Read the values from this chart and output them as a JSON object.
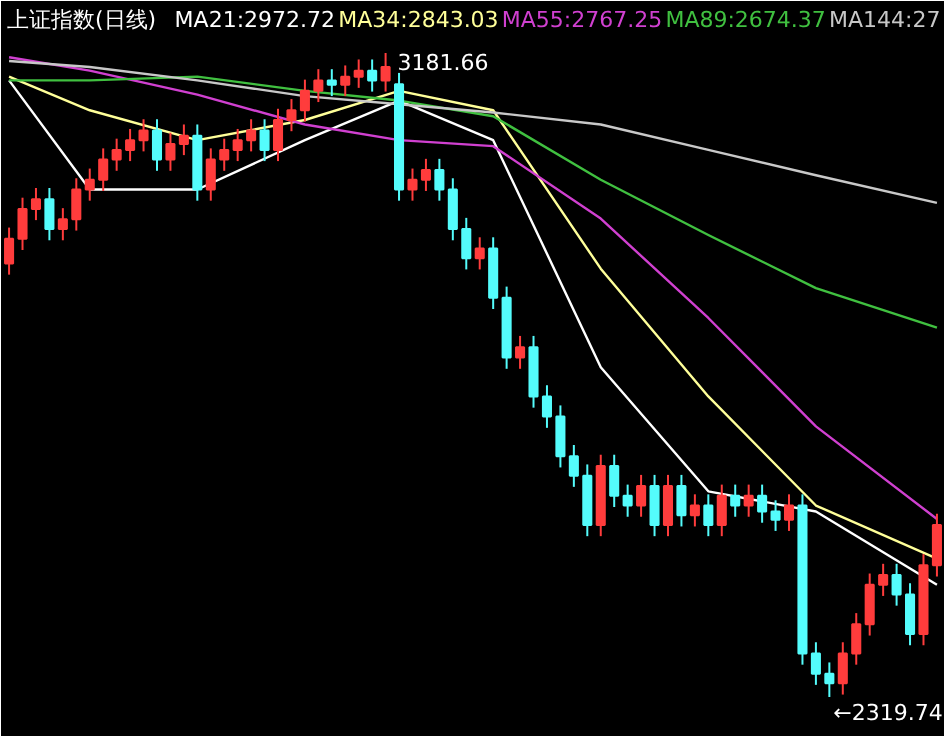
{
  "chart_data": {
    "type": "candlestick",
    "title": "上证指数(日线)",
    "categories": [
      null,
      null,
      null,
      null,
      null,
      null,
      null,
      null,
      null,
      null,
      null,
      null,
      null,
      null,
      null,
      null,
      null,
      null,
      null,
      null,
      null,
      null,
      null,
      null,
      null,
      null,
      null,
      null,
      null,
      null,
      null,
      null,
      null,
      null,
      null,
      null,
      null,
      null,
      null,
      null,
      null,
      null,
      null,
      null,
      null,
      null,
      null,
      null,
      null,
      null,
      null,
      null,
      null,
      null,
      null,
      null,
      null,
      null,
      null,
      null,
      null,
      null,
      null,
      null,
      null,
      null,
      null,
      null,
      null,
      null
    ],
    "ohlc": [
      [
        2900,
        2948,
        2885,
        2933
      ],
      [
        2933,
        2988,
        2918,
        2973
      ],
      [
        2973,
        3001,
        2958,
        2986
      ],
      [
        2986,
        3001,
        2931,
        2946
      ],
      [
        2946,
        2974,
        2931,
        2959
      ],
      [
        2959,
        3014,
        2944,
        2999
      ],
      [
        2999,
        3027,
        2984,
        3012
      ],
      [
        3012,
        3054,
        2997,
        3039
      ],
      [
        3039,
        3067,
        3024,
        3052
      ],
      [
        3052,
        3080,
        3037,
        3065
      ],
      [
        3065,
        3093,
        3050,
        3078
      ],
      [
        3078,
        3093,
        3024,
        3039
      ],
      [
        3039,
        3075,
        3024,
        3060
      ],
      [
        3060,
        3086,
        3045,
        3071
      ],
      [
        3071,
        3086,
        2984,
        2999
      ],
      [
        2999,
        3054,
        2984,
        3039
      ],
      [
        3039,
        3067,
        3024,
        3052
      ],
      [
        3052,
        3080,
        3037,
        3065
      ],
      [
        3065,
        3093,
        3050,
        3078
      ],
      [
        3078,
        3093,
        3037,
        3052
      ],
      [
        3052,
        3107,
        3037,
        3092
      ],
      [
        3092,
        3120,
        3077,
        3105
      ],
      [
        3105,
        3146,
        3090,
        3131
      ],
      [
        3131,
        3160,
        3116,
        3145
      ],
      [
        3145,
        3160,
        3124,
        3139
      ],
      [
        3139,
        3165,
        3124,
        3150
      ],
      [
        3150,
        3173,
        3135,
        3158
      ],
      [
        3158,
        3173,
        3130,
        3145
      ],
      [
        3145,
        3181.66,
        3130,
        3163
      ],
      [
        3140,
        3155,
        2984,
        2999
      ],
      [
        2999,
        3027,
        2984,
        3012
      ],
      [
        3012,
        3040,
        2997,
        3025
      ],
      [
        3025,
        3040,
        2984,
        2999
      ],
      [
        2999,
        3014,
        2931,
        2946
      ],
      [
        2946,
        2961,
        2892,
        2907
      ],
      [
        2907,
        2935,
        2892,
        2920
      ],
      [
        2920,
        2935,
        2839,
        2854
      ],
      [
        2854,
        2869,
        2759,
        2774
      ],
      [
        2774,
        2803,
        2759,
        2788
      ],
      [
        2788,
        2803,
        2707,
        2722
      ],
      [
        2722,
        2737,
        2680,
        2695
      ],
      [
        2695,
        2710,
        2627,
        2642
      ],
      [
        2642,
        2657,
        2601,
        2616
      ],
      [
        2616,
        2631,
        2535,
        2550
      ],
      [
        2550,
        2644,
        2535,
        2629
      ],
      [
        2629,
        2644,
        2574,
        2589
      ],
      [
        2589,
        2604,
        2561,
        2576
      ],
      [
        2576,
        2617,
        2561,
        2602
      ],
      [
        2602,
        2617,
        2535,
        2550
      ],
      [
        2550,
        2617,
        2535,
        2602
      ],
      [
        2602,
        2617,
        2548,
        2563
      ],
      [
        2563,
        2591,
        2548,
        2576
      ],
      [
        2576,
        2591,
        2535,
        2550
      ],
      [
        2550,
        2604,
        2535,
        2589
      ],
      [
        2589,
        2604,
        2561,
        2576
      ],
      [
        2576,
        2604,
        2561,
        2589
      ],
      [
        2589,
        2604,
        2553,
        2568
      ],
      [
        2568,
        2583,
        2542,
        2557
      ],
      [
        2557,
        2591,
        2542,
        2576
      ],
      [
        2576,
        2591,
        2363,
        2378
      ],
      [
        2378,
        2393,
        2336,
        2351
      ],
      [
        2351,
        2366,
        2319.74,
        2338
      ],
      [
        2338,
        2393,
        2323,
        2378
      ],
      [
        2378,
        2432,
        2363,
        2417
      ],
      [
        2417,
        2485,
        2402,
        2470
      ],
      [
        2470,
        2498,
        2455,
        2483
      ],
      [
        2483,
        2498,
        2442,
        2457
      ],
      [
        2457,
        2472,
        2389,
        2404
      ],
      [
        2404,
        2511,
        2389,
        2496
      ],
      [
        2496,
        2565,
        2481,
        2550
      ]
    ],
    "series": [
      {
        "type": "line",
        "name": "MA21:2972.72",
        "color": "#ffffff",
        "values": [
          3145,
          null,
          null,
          null,
          null,
          null,
          2999,
          null,
          null,
          null,
          null,
          null,
          null,
          null,
          2999,
          null,
          null,
          null,
          null,
          null,
          null,
          null,
          3065,
          null,
          null,
          null,
          null,
          null,
          null,
          3118,
          null,
          null,
          null,
          null,
          null,
          null,
          3065,
          null,
          null,
          null,
          null,
          null,
          null,
          null,
          2761,
          null,
          null,
          null,
          null,
          null,
          null,
          null,
          2595,
          null,
          null,
          null,
          null,
          null,
          null,
          null,
          2568,
          null,
          null,
          null,
          null,
          null,
          null,
          null,
          null,
          2470
        ]
      },
      {
        "type": "line",
        "name": "MA34:2843.03",
        "color": "#ffff99",
        "values": [
          3150,
          null,
          null,
          null,
          null,
          null,
          3105,
          null,
          null,
          null,
          null,
          null,
          null,
          null,
          3065,
          null,
          null,
          null,
          null,
          null,
          null,
          null,
          3092,
          null,
          null,
          null,
          null,
          null,
          null,
          3131,
          null,
          null,
          null,
          null,
          null,
          null,
          3105,
          null,
          null,
          null,
          null,
          null,
          null,
          null,
          2893,
          null,
          null,
          null,
          null,
          null,
          null,
          null,
          2722,
          null,
          null,
          null,
          null,
          null,
          null,
          null,
          2576,
          null,
          null,
          null,
          null,
          null,
          null,
          null,
          null,
          2505
        ]
      },
      {
        "type": "line",
        "name": "MA55:2767.25",
        "color": "#d040d0",
        "values": [
          3176,
          null,
          null,
          null,
          null,
          null,
          3158,
          null,
          null,
          null,
          null,
          null,
          null,
          null,
          3126,
          null,
          null,
          null,
          null,
          null,
          null,
          null,
          3086,
          null,
          null,
          null,
          null,
          null,
          null,
          3065,
          null,
          null,
          null,
          null,
          null,
          null,
          3057,
          null,
          null,
          null,
          null,
          null,
          null,
          null,
          2960,
          null,
          null,
          null,
          null,
          null,
          null,
          null,
          2827,
          null,
          null,
          null,
          null,
          null,
          null,
          null,
          2682,
          null,
          null,
          null,
          null,
          null,
          null,
          null,
          null,
          2558
        ]
      },
      {
        "type": "line",
        "name": "MA89:2674.37",
        "color": "#40c040",
        "values": [
          3145,
          null,
          null,
          null,
          null,
          null,
          3145,
          null,
          null,
          null,
          null,
          null,
          null,
          null,
          3150,
          null,
          null,
          null,
          null,
          null,
          null,
          null,
          3131,
          null,
          null,
          null,
          null,
          null,
          null,
          3118,
          null,
          null,
          null,
          null,
          null,
          null,
          3097,
          null,
          null,
          null,
          null,
          null,
          null,
          null,
          3012,
          null,
          null,
          null,
          null,
          null,
          null,
          null,
          2938,
          null,
          null,
          null,
          null,
          null,
          null,
          null,
          2867,
          null,
          null,
          null,
          null,
          null,
          null,
          null,
          null,
          2814
        ]
      },
      {
        "type": "line",
        "name": "MA144:27",
        "color": "#c8c8c8",
        "values": [
          3171,
          null,
          null,
          null,
          null,
          null,
          3163,
          null,
          null,
          null,
          null,
          null,
          null,
          null,
          3145,
          null,
          null,
          null,
          null,
          null,
          null,
          null,
          3124,
          null,
          null,
          null,
          null,
          null,
          null,
          3113,
          null,
          null,
          null,
          null,
          null,
          null,
          3102,
          null,
          null,
          null,
          null,
          null,
          null,
          null,
          3086,
          null,
          null,
          null,
          null,
          null,
          null,
          null,
          3052,
          null,
          null,
          null,
          null,
          null,
          null,
          null,
          3018,
          null,
          null,
          null,
          null,
          null,
          null,
          null,
          null,
          2981
        ]
      }
    ],
    "annotations": [
      "3181.66",
      "←2319.74"
    ],
    "legend": "top"
  }
}
